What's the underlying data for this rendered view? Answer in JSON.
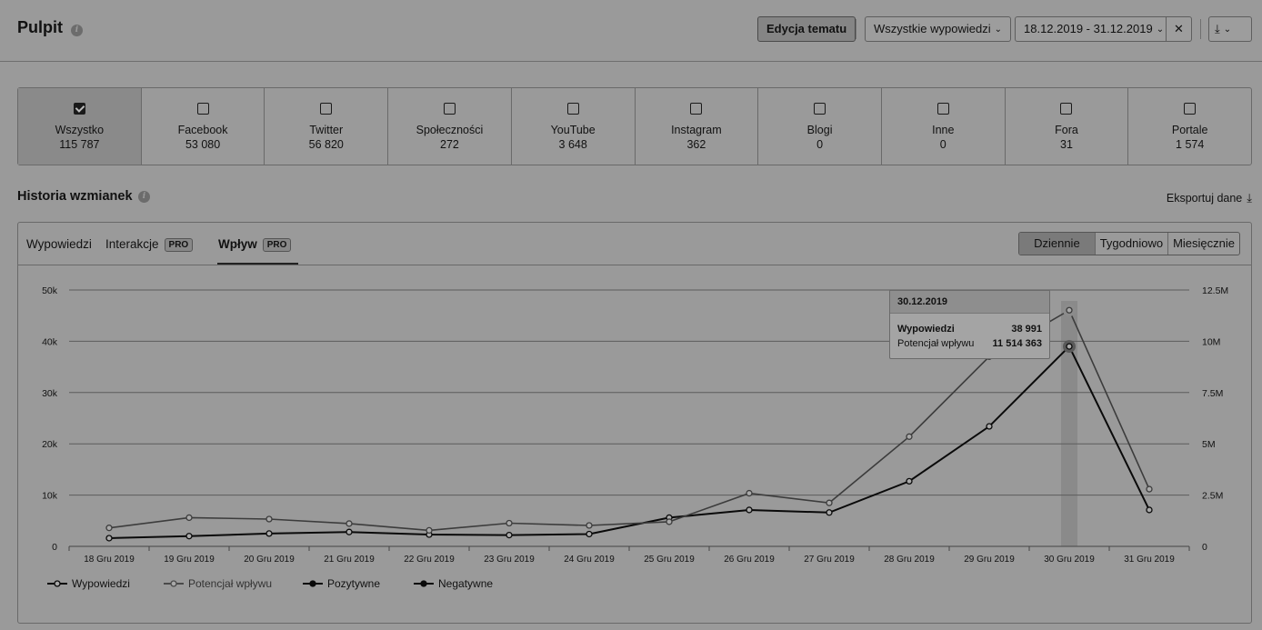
{
  "header": {
    "title": "Pulpit",
    "edit_button": "Edycja tematu",
    "source_filter": "Wszystkie wypowiedzi",
    "date_range": "18.12.2019 - 31.12.2019",
    "info_glyph": "i",
    "close_glyph": "✕",
    "download_glyph": "⤓",
    "chevron_glyph": "⌄"
  },
  "channels": [
    {
      "name": "Wszystko",
      "count": "115 787",
      "checked": true
    },
    {
      "name": "Facebook",
      "count": "53 080",
      "checked": false
    },
    {
      "name": "Twitter",
      "count": "56 820",
      "checked": false
    },
    {
      "name": "Społeczności",
      "count": "272",
      "checked": false
    },
    {
      "name": "YouTube",
      "count": "3 648",
      "checked": false
    },
    {
      "name": "Instagram",
      "count": "362",
      "checked": false
    },
    {
      "name": "Blogi",
      "count": "0",
      "checked": false
    },
    {
      "name": "Inne",
      "count": "0",
      "checked": false
    },
    {
      "name": "Fora",
      "count": "31",
      "checked": false
    },
    {
      "name": "Portale",
      "count": "1 574",
      "checked": false
    }
  ],
  "history": {
    "title": "Historia wzmianek",
    "export_label": "Eksportuj dane",
    "tabs": [
      {
        "label": "Wypowiedzi",
        "pro": false
      },
      {
        "label": "Interakcje",
        "pro": true
      },
      {
        "label": "Wpływ",
        "pro": true
      }
    ],
    "pro_badge": "PRO",
    "periods": [
      "Dziennie",
      "Tygodniowo",
      "Miesięcznie"
    ],
    "active_period": "Dziennie"
  },
  "tooltip": {
    "date": "30.12.2019",
    "rows": [
      {
        "label": "Wypowiedzi",
        "value": "38 991"
      },
      {
        "label": "Potencjał wpływu",
        "value": "11 514 363"
      }
    ]
  },
  "chart_data": {
    "type": "line",
    "categories": [
      "18 Gru 2019",
      "19 Gru 2019",
      "20 Gru 2019",
      "21 Gru 2019",
      "22 Gru 2019",
      "23 Gru 2019",
      "24 Gru 2019",
      "25 Gru 2019",
      "26 Gru 2019",
      "27 Gru 2019",
      "28 Gru 2019",
      "29 Gru 2019",
      "30 Gru 2019",
      "31 Gru 2019"
    ],
    "y_left": {
      "ticks": [
        "0",
        "10k",
        "20k",
        "30k",
        "40k",
        "50k"
      ],
      "range": [
        0,
        50000
      ]
    },
    "y_right": {
      "ticks": [
        "0",
        "2.5M",
        "5M",
        "7.5M",
        "10M",
        "12.5M"
      ],
      "range": [
        0,
        12500000
      ]
    },
    "series": [
      {
        "name": "Wypowiedzi",
        "axis": "left",
        "color": "#0a0a0a",
        "values": [
          1600,
          2000,
          2500,
          2800,
          2300,
          2200,
          2400,
          5600,
          7100,
          6600,
          12700,
          23400,
          38991,
          7100
        ]
      },
      {
        "name": "Potencjał wpływu",
        "axis": "right",
        "color": "#3c3c3c",
        "values": [
          900000,
          1400000,
          1330000,
          1110000,
          780000,
          1130000,
          1020000,
          1200000,
          2590000,
          2120000,
          5350000,
          9250000,
          11514363,
          2790000
        ]
      }
    ],
    "legend": [
      "Wypowiedzi",
      "Potencjał wpływu",
      "Pozytywne",
      "Negatywne"
    ],
    "legend_position": "bottom-left",
    "highlight_category": "30 Gru 2019"
  }
}
